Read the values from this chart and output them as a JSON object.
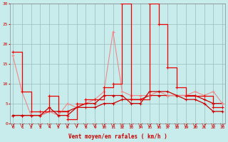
{
  "x": [
    0,
    1,
    2,
    3,
    4,
    5,
    6,
    7,
    8,
    9,
    10,
    11,
    12,
    13,
    14,
    15,
    16,
    17,
    18,
    19,
    20,
    21,
    22,
    23
  ],
  "dark_red_line": [
    18,
    8,
    3,
    3,
    7,
    3,
    1,
    5,
    6,
    6,
    9,
    10,
    30,
    6,
    6,
    30,
    25,
    14,
    9,
    7,
    7,
    7,
    4,
    4
  ],
  "pink_line": [
    17,
    8,
    2,
    2,
    3,
    2,
    5,
    4,
    5,
    6,
    8,
    23,
    8,
    7,
    7,
    7,
    8,
    7,
    7,
    7,
    8,
    7,
    8,
    5
  ],
  "avg_line": [
    2,
    2,
    2,
    2,
    4,
    2,
    2,
    4,
    5,
    5,
    7,
    7,
    7,
    5,
    5,
    8,
    8,
    8,
    7,
    6,
    6,
    5,
    3,
    3
  ],
  "trend_line": [
    2,
    2,
    2,
    2,
    3,
    3,
    3,
    4,
    4,
    4,
    5,
    5,
    6,
    6,
    6,
    7,
    7,
    7,
    7,
    7,
    7,
    6,
    5,
    5
  ],
  "bg_color": "#c8ecec",
  "grid_color": "#99bbbb",
  "dark_red": "#cc0000",
  "bright_red": "#ee0000",
  "pink": "#ee8888",
  "xlabel": "Vent moyen/en rafales ( km/h )",
  "ylim": [
    0,
    30
  ],
  "xlim": [
    -0.3,
    23.3
  ],
  "yticks": [
    0,
    5,
    10,
    15,
    20,
    25,
    30
  ],
  "xticks": [
    0,
    1,
    2,
    3,
    4,
    5,
    6,
    7,
    8,
    9,
    10,
    11,
    12,
    13,
    14,
    15,
    16,
    17,
    18,
    19,
    20,
    21,
    22,
    23
  ]
}
